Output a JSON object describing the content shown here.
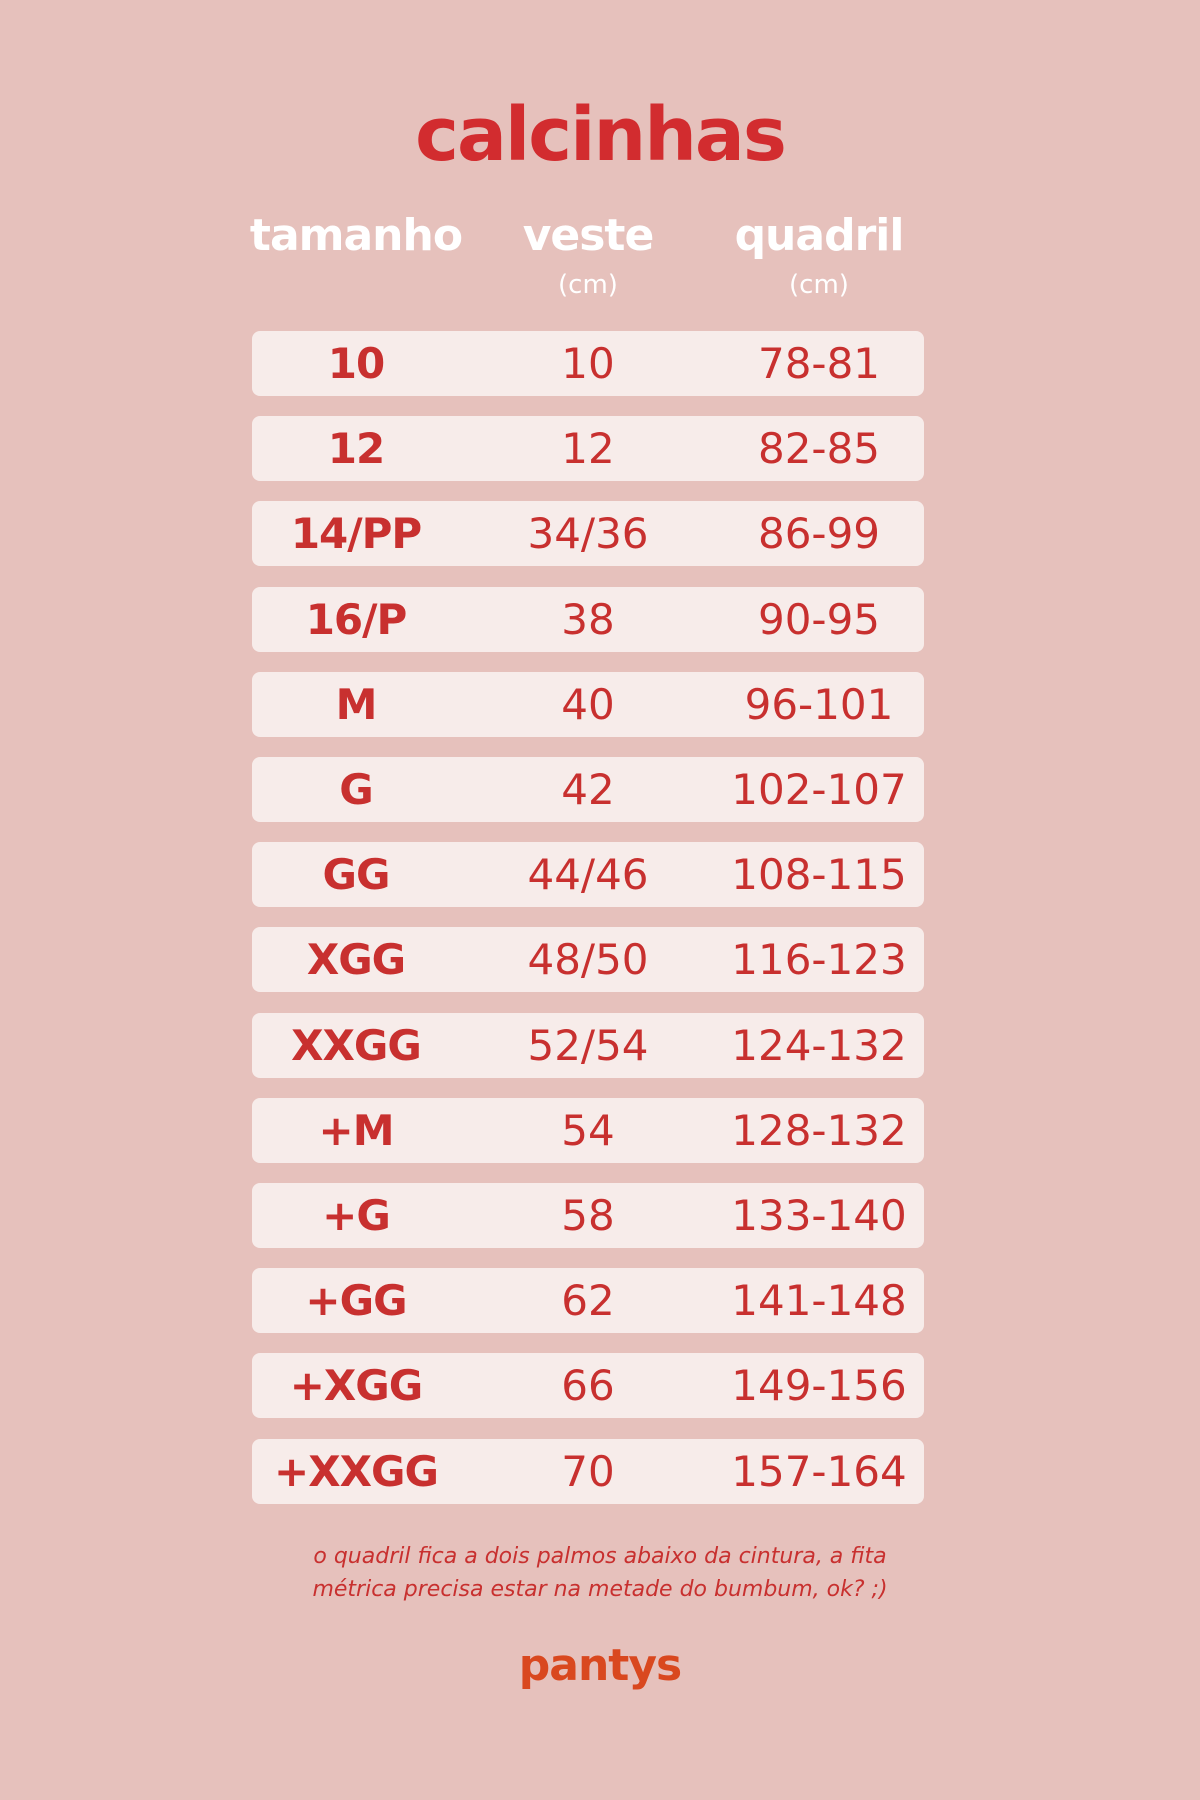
{
  "title": "calcinhas",
  "headers": [
    {
      "label": "tamanho",
      "unit": ""
    },
    {
      "label": "veste",
      "unit": "(cm)"
    },
    {
      "label": "quadril",
      "unit": "(cm)"
    }
  ],
  "rows": [
    {
      "size": "10",
      "veste": "10",
      "quadril": "78-81"
    },
    {
      "size": "12",
      "veste": "12",
      "quadril": "82-85"
    },
    {
      "size": "14/PP",
      "veste": "34/36",
      "quadril": "86-99"
    },
    {
      "size": "16/P",
      "veste": "38",
      "quadril": "90-95"
    },
    {
      "size": "M",
      "veste": "40",
      "quadril": "96-101"
    },
    {
      "size": "G",
      "veste": "42",
      "quadril": "102-107"
    },
    {
      "size": "GG",
      "veste": "44/46",
      "quadril": "108-115"
    },
    {
      "size": "XGG",
      "veste": "48/50",
      "quadril": "116-123"
    },
    {
      "size": "XXGG",
      "veste": "52/54",
      "quadril": "124-132"
    },
    {
      "size": "+M",
      "veste": "54",
      "quadril": "128-132"
    },
    {
      "size": "+G",
      "veste": "58",
      "quadril": "133-140"
    },
    {
      "size": "+GG",
      "veste": "62",
      "quadril": "141-148"
    },
    {
      "size": "+XGG",
      "veste": "66",
      "quadril": "149-156"
    },
    {
      "size": "+XXGG",
      "veste": "70",
      "quadril": "157-164"
    }
  ],
  "note_lines": [
    "o quadril fica a dois palmos abaixo da cintura, a fita",
    "métrica precisa estar na metade do bumbum, ok? ;)"
  ],
  "brand": "pantys",
  "colors": {
    "background": "#e6c1bc",
    "row": "#f7ecea",
    "accent": "#d22c2f",
    "brand": "#d9481f"
  }
}
